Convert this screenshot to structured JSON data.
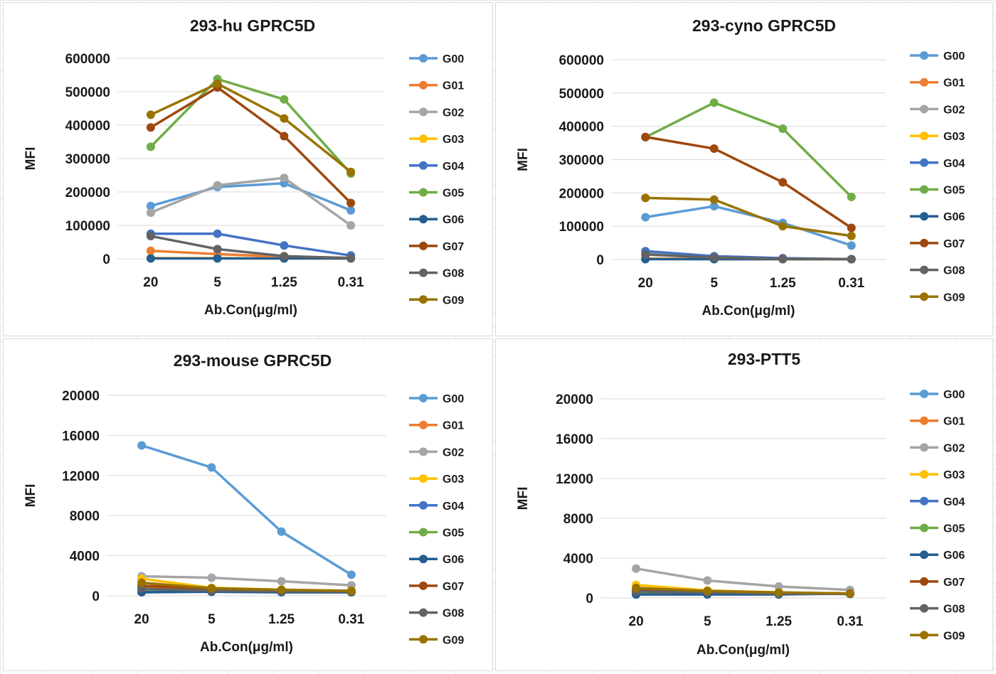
{
  "chart_data": [
    {
      "type": "line",
      "title": "293-hu GPRC5D",
      "xlabel": "Ab.Con(μg/ml)",
      "ylabel": "MFI",
      "categories": [
        "20",
        "5",
        "1.25",
        "0.31"
      ],
      "ylim": [
        0,
        600000
      ],
      "yticks": [
        0,
        100000,
        200000,
        300000,
        400000,
        500000,
        600000
      ],
      "yticklabels": [
        "0",
        "100000",
        "200000",
        "300000",
        "400000",
        "500000",
        "600000"
      ],
      "legend_position": "right",
      "series": [
        {
          "name": "G00",
          "color": "#5b9bd5",
          "values": [
            158000,
            215000,
            226000,
            145000
          ]
        },
        {
          "name": "G01",
          "color": "#ed7d31",
          "values": [
            24000,
            14000,
            6000,
            3000
          ]
        },
        {
          "name": "G02",
          "color": "#a5a5a5",
          "values": [
            138000,
            220000,
            242000,
            100000
          ]
        },
        {
          "name": "G03",
          "color": "#ffc000",
          "values": [
            2000,
            2000,
            1000,
            1000
          ]
        },
        {
          "name": "G04",
          "color": "#4472c4",
          "values": [
            75000,
            75000,
            40000,
            10000
          ]
        },
        {
          "name": "G05",
          "color": "#70ad47",
          "values": [
            335000,
            538000,
            477000,
            255000
          ]
        },
        {
          "name": "G06",
          "color": "#255e91",
          "values": [
            1000,
            1000,
            1000,
            1000
          ]
        },
        {
          "name": "G07",
          "color": "#9e480e",
          "values": [
            393000,
            513000,
            367000,
            167000
          ]
        },
        {
          "name": "G08",
          "color": "#636363",
          "values": [
            68000,
            29000,
            8000,
            2000
          ]
        },
        {
          "name": "G09",
          "color": "#997300",
          "values": [
            431000,
            524000,
            420000,
            260000
          ]
        }
      ]
    },
    {
      "type": "line",
      "title": "293-cyno GPRC5D",
      "xlabel": "Ab.Con(μg/ml)",
      "ylabel": "MFI",
      "categories": [
        "20",
        "5",
        "1.25",
        "0.31"
      ],
      "ylim": [
        0,
        600000
      ],
      "yticks": [
        0,
        100000,
        200000,
        300000,
        400000,
        500000,
        600000
      ],
      "yticklabels": [
        "0",
        "100000",
        "200000",
        "300000",
        "400000",
        "500000",
        "600000"
      ],
      "legend_position": "right",
      "series": [
        {
          "name": "G00",
          "color": "#5b9bd5",
          "values": [
            127000,
            160000,
            110000,
            42000
          ]
        },
        {
          "name": "G01",
          "color": "#ed7d31",
          "values": [
            3000,
            2000,
            1000,
            1000
          ]
        },
        {
          "name": "G02",
          "color": "#a5a5a5",
          "values": [
            18000,
            8000,
            3000,
            1000
          ]
        },
        {
          "name": "G03",
          "color": "#ffc000",
          "values": [
            2000,
            1000,
            1000,
            1000
          ]
        },
        {
          "name": "G04",
          "color": "#4472c4",
          "values": [
            25000,
            10000,
            4000,
            1000
          ]
        },
        {
          "name": "G05",
          "color": "#70ad47",
          "values": [
            367000,
            471000,
            393000,
            188000
          ]
        },
        {
          "name": "G06",
          "color": "#255e91",
          "values": [
            1000,
            1000,
            1000,
            1000
          ]
        },
        {
          "name": "G07",
          "color": "#9e480e",
          "values": [
            368000,
            333000,
            232000,
            95000
          ]
        },
        {
          "name": "G08",
          "color": "#636363",
          "values": [
            15000,
            6000,
            2000,
            1000
          ]
        },
        {
          "name": "G09",
          "color": "#997300",
          "values": [
            185000,
            180000,
            100000,
            71000
          ]
        }
      ]
    },
    {
      "type": "line",
      "title": "293-mouse GPRC5D",
      "xlabel": "Ab.Con(μg/ml)",
      "ylabel": "MFI",
      "categories": [
        "20",
        "5",
        "1.25",
        "0.31"
      ],
      "ylim": [
        0,
        20000
      ],
      "yticks": [
        0,
        4000,
        8000,
        12000,
        16000,
        20000
      ],
      "yticklabels": [
        "0",
        "4000",
        "8000",
        "12000",
        "16000",
        "20000"
      ],
      "legend_position": "right",
      "series": [
        {
          "name": "G00",
          "color": "#5b9bd5",
          "values": [
            15000,
            12800,
            6400,
            2100
          ]
        },
        {
          "name": "G01",
          "color": "#ed7d31",
          "values": [
            900,
            600,
            500,
            400
          ]
        },
        {
          "name": "G02",
          "color": "#a5a5a5",
          "values": [
            1950,
            1800,
            1450,
            1050
          ]
        },
        {
          "name": "G03",
          "color": "#ffc000",
          "values": [
            1700,
            800,
            600,
            500
          ]
        },
        {
          "name": "G04",
          "color": "#4472c4",
          "values": [
            450,
            450,
            400,
            350
          ]
        },
        {
          "name": "G05",
          "color": "#70ad47",
          "values": [
            650,
            550,
            450,
            400
          ]
        },
        {
          "name": "G06",
          "color": "#255e91",
          "values": [
            350,
            400,
            350,
            350
          ]
        },
        {
          "name": "G07",
          "color": "#9e480e",
          "values": [
            1000,
            700,
            550,
            450
          ]
        },
        {
          "name": "G08",
          "color": "#636363",
          "values": [
            700,
            500,
            450,
            400
          ]
        },
        {
          "name": "G09",
          "color": "#997300",
          "values": [
            1300,
            750,
            600,
            500
          ]
        }
      ]
    },
    {
      "type": "line",
      "title": "293-PTT5",
      "xlabel": "Ab.Con(μg/ml)",
      "ylabel": "MFI",
      "categories": [
        "20",
        "5",
        "1.25",
        "0.31"
      ],
      "ylim": [
        0,
        20000
      ],
      "yticks": [
        0,
        4000,
        8000,
        12000,
        16000,
        20000
      ],
      "yticklabels": [
        "0",
        "4000",
        "8000",
        "12000",
        "16000",
        "20000"
      ],
      "legend_position": "right",
      "series": [
        {
          "name": "G00",
          "color": "#5b9bd5",
          "values": [
            600,
            500,
            450,
            400
          ]
        },
        {
          "name": "G01",
          "color": "#ed7d31",
          "values": [
            900,
            600,
            500,
            400
          ]
        },
        {
          "name": "G02",
          "color": "#a5a5a5",
          "values": [
            2950,
            1750,
            1150,
            800
          ]
        },
        {
          "name": "G03",
          "color": "#ffc000",
          "values": [
            1300,
            750,
            550,
            450
          ]
        },
        {
          "name": "G04",
          "color": "#4472c4",
          "values": [
            450,
            450,
            400,
            400
          ]
        },
        {
          "name": "G05",
          "color": "#70ad47",
          "values": [
            600,
            500,
            450,
            400
          ]
        },
        {
          "name": "G06",
          "color": "#255e91",
          "values": [
            350,
            350,
            350,
            450
          ]
        },
        {
          "name": "G07",
          "color": "#9e480e",
          "values": [
            800,
            650,
            500,
            450
          ]
        },
        {
          "name": "G08",
          "color": "#636363",
          "values": [
            650,
            550,
            450,
            400
          ]
        },
        {
          "name": "G09",
          "color": "#997300",
          "values": [
            1000,
            700,
            550,
            450
          ]
        }
      ]
    }
  ]
}
